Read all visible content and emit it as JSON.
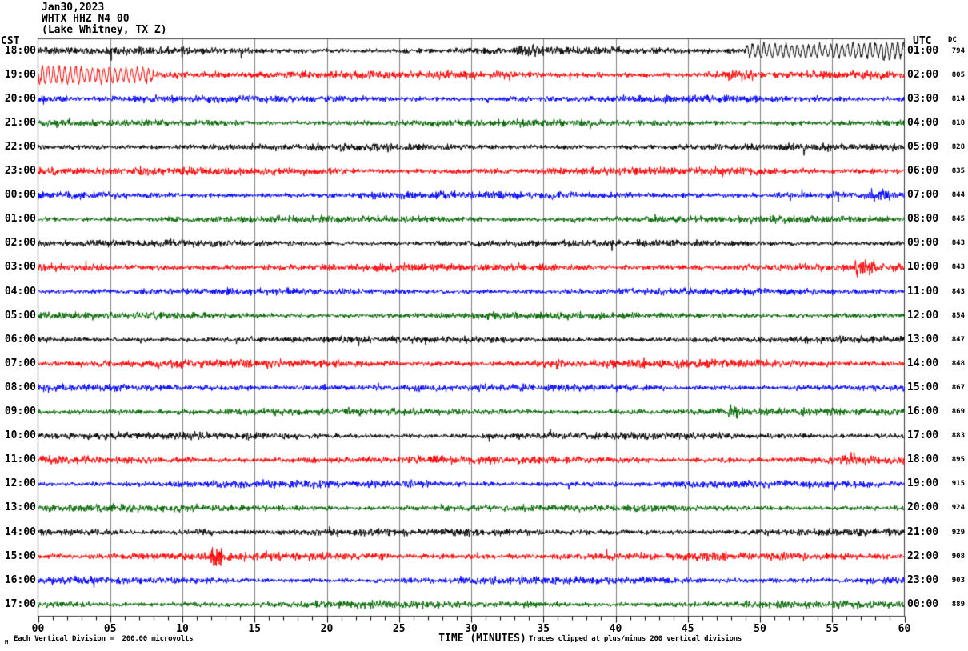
{
  "header": {
    "date": "Jan30,2023",
    "station": "WHTX HHZ N4 00",
    "location": "(Lake Whitney, TX Z)"
  },
  "axes": {
    "left_header": "CST",
    "right_header": "UTC",
    "dc_header": "DC",
    "x_label": "TIME (MINUTES)",
    "x_ticks": [
      "00",
      "05",
      "10",
      "15",
      "20",
      "25",
      "30",
      "35",
      "40",
      "45",
      "50",
      "55",
      "60"
    ]
  },
  "footer": {
    "scale_marker": "M",
    "left": "Each Vertical Division =  200.00 microvolts",
    "right": "Traces clipped at plus/minus 200 vertical divisions"
  },
  "palette": {
    "black": "#000000",
    "red": "#ff0000",
    "blue": "#0000ff",
    "green": "#006600",
    "grid": "#7f7f7f",
    "border": "#3a3a3a",
    "background": "#ffffff"
  },
  "chart_data": {
    "type": "line",
    "subtype": "helicorder-seismogram",
    "x_unit": "minutes",
    "x_range": [
      0,
      60
    ],
    "minor_tick_minutes": 1,
    "major_tick_minutes": 5,
    "rows_count": 24,
    "row_interval_minutes": 60,
    "amplitude_note": "Each vertical division = 200.00 microvolts; traces clipped at plus/minus 200 vertical divisions",
    "rows": [
      {
        "cst": "18:00",
        "utc": "01:00",
        "dc": "794",
        "color": "black",
        "amp": 2.7,
        "events": [
          {
            "start": 33,
            "end": 35,
            "amp": 1.4
          },
          {
            "start": 49,
            "end": 60,
            "amp": 2.4,
            "smooth": true
          }
        ]
      },
      {
        "cst": "19:00",
        "utc": "02:00",
        "dc": "805",
        "color": "red",
        "amp": 2.9,
        "events": [
          {
            "start": 0,
            "end": 8,
            "amp": 2.2,
            "smooth": true
          },
          {
            "start": 8,
            "end": 13,
            "amp": 1.5
          },
          {
            "start": 47.5,
            "end": 49.5,
            "amp": 1.8
          }
        ]
      },
      {
        "cst": "20:00",
        "utc": "03:00",
        "dc": "814",
        "color": "blue",
        "amp": 2.6,
        "events": [
          {
            "start": 0,
            "end": 2,
            "amp": 1.5
          }
        ]
      },
      {
        "cst": "21:00",
        "utc": "04:00",
        "dc": "818",
        "color": "green",
        "amp": 2.6,
        "events": []
      },
      {
        "cst": "22:00",
        "utc": "05:00",
        "dc": "828",
        "color": "black",
        "amp": 2.6,
        "events": []
      },
      {
        "cst": "23:00",
        "utc": "06:00",
        "dc": "835",
        "color": "red",
        "amp": 2.9,
        "events": [
          {
            "start": 0,
            "end": 1.5,
            "amp": 1.4
          }
        ]
      },
      {
        "cst": "00:00",
        "utc": "07:00",
        "dc": "844",
        "color": "blue",
        "amp": 2.7,
        "events": [
          {
            "start": 57.5,
            "end": 59,
            "amp": 1.7
          }
        ]
      },
      {
        "cst": "01:00",
        "utc": "08:00",
        "dc": "845",
        "color": "green",
        "amp": 2.6,
        "events": []
      },
      {
        "cst": "02:00",
        "utc": "09:00",
        "dc": "843",
        "color": "black",
        "amp": 2.5,
        "events": []
      },
      {
        "cst": "03:00",
        "utc": "10:00",
        "dc": "843",
        "color": "red",
        "amp": 2.9,
        "events": [
          {
            "start": 56.5,
            "end": 58,
            "amp": 2.3
          }
        ]
      },
      {
        "cst": "04:00",
        "utc": "11:00",
        "dc": "843",
        "color": "blue",
        "amp": 2.5,
        "events": []
      },
      {
        "cst": "05:00",
        "utc": "12:00",
        "dc": "854",
        "color": "green",
        "amp": 2.5,
        "events": []
      },
      {
        "cst": "06:00",
        "utc": "13:00",
        "dc": "847",
        "color": "black",
        "amp": 2.5,
        "events": []
      },
      {
        "cst": "07:00",
        "utc": "14:00",
        "dc": "848",
        "color": "red",
        "amp": 2.9,
        "events": [
          {
            "start": 35,
            "end": 36.5,
            "amp": 1.6
          }
        ]
      },
      {
        "cst": "08:00",
        "utc": "15:00",
        "dc": "867",
        "color": "blue",
        "amp": 2.7,
        "events": []
      },
      {
        "cst": "09:00",
        "utc": "16:00",
        "dc": "869",
        "color": "green",
        "amp": 2.6,
        "events": [
          {
            "start": 47.8,
            "end": 48.6,
            "amp": 2.2
          }
        ]
      },
      {
        "cst": "10:00",
        "utc": "17:00",
        "dc": "883",
        "color": "black",
        "amp": 2.6,
        "events": []
      },
      {
        "cst": "11:00",
        "utc": "18:00",
        "dc": "895",
        "color": "red",
        "amp": 2.9,
        "events": [
          {
            "start": 55.5,
            "end": 56.8,
            "amp": 1.8
          }
        ]
      },
      {
        "cst": "12:00",
        "utc": "19:00",
        "dc": "915",
        "color": "blue",
        "amp": 2.6,
        "events": [
          {
            "start": 25.5,
            "end": 27,
            "amp": 1.5
          }
        ]
      },
      {
        "cst": "13:00",
        "utc": "20:00",
        "dc": "924",
        "color": "green",
        "amp": 2.6,
        "events": [
          {
            "start": 27.5,
            "end": 28.5,
            "amp": 1.6
          }
        ]
      },
      {
        "cst": "14:00",
        "utc": "21:00",
        "dc": "929",
        "color": "black",
        "amp": 2.7,
        "events": [
          {
            "start": 10.8,
            "end": 12.2,
            "amp": 1.8
          }
        ]
      },
      {
        "cst": "15:00",
        "utc": "22:00",
        "dc": "908",
        "color": "red",
        "amp": 2.9,
        "events": [
          {
            "start": 11.9,
            "end": 12.8,
            "amp": 2.8
          }
        ]
      },
      {
        "cst": "16:00",
        "utc": "23:00",
        "dc": "903",
        "color": "blue",
        "amp": 2.7,
        "events": []
      },
      {
        "cst": "17:00",
        "utc": "00:00",
        "dc": "889",
        "color": "green",
        "amp": 2.6,
        "events": [
          {
            "start": 33,
            "end": 34.5,
            "amp": 1.4
          }
        ]
      }
    ]
  }
}
